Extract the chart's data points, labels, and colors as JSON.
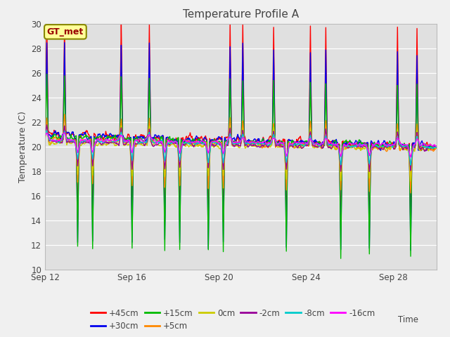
{
  "title": "Temperature Profile A",
  "xlabel": "Time",
  "ylabel": "Temperature (C)",
  "ylim": [
    10,
    30
  ],
  "yticks": [
    10,
    12,
    14,
    16,
    18,
    20,
    22,
    24,
    26,
    28,
    30
  ],
  "fig_bg": "#f0f0f0",
  "plot_bg": "#e0e0e0",
  "series": [
    {
      "label": "+45cm",
      "color": "#ff0000",
      "lw": 1.0
    },
    {
      "label": "+30cm",
      "color": "#0000ee",
      "lw": 1.0
    },
    {
      "label": "+15cm",
      "color": "#00bb00",
      "lw": 1.0
    },
    {
      "label": "+5cm",
      "color": "#ff8800",
      "lw": 1.0
    },
    {
      "label": "0cm",
      "color": "#cccc00",
      "lw": 1.0
    },
    {
      "label": "-2cm",
      "color": "#990099",
      "lw": 1.0
    },
    {
      "label": "-8cm",
      "color": "#00cccc",
      "lw": 1.0
    },
    {
      "label": "-16cm",
      "color": "#ff00ff",
      "lw": 1.0
    }
  ],
  "xticklabels": [
    "Sep 12",
    "Sep 16",
    "Sep 20",
    "Sep 24",
    "Sep 28"
  ],
  "xtick_days": [
    0,
    4,
    8,
    12,
    16
  ],
  "gt_met_label": "GT_met",
  "gt_met_bg": "#ffff99",
  "gt_met_border": "#888800",
  "n_days": 18,
  "samples_per_day": 48,
  "base_temp": 20.0
}
